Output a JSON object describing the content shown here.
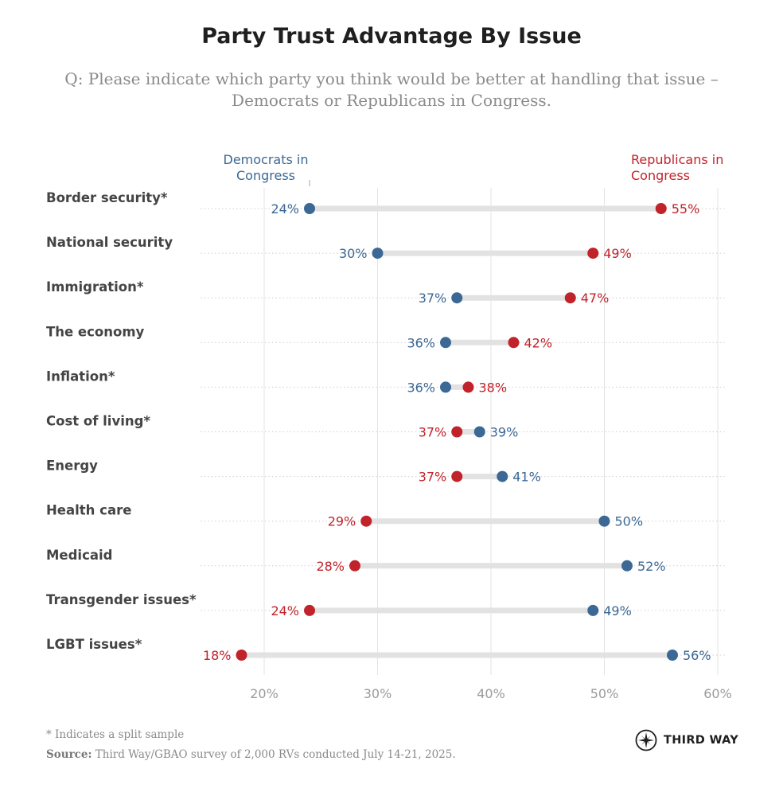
{
  "title": "Party Trust Advantage By Issue",
  "subtitle_line1": "Q: Please indicate which party you think would be better at handling that issue –",
  "subtitle_line2": "Democrats or Republicans in Congress.",
  "colors": {
    "dem": "#3b6894",
    "rep": "#c1232b",
    "bar": "#e2e2e2",
    "grid": "#e3e3e3",
    "label": "#444444",
    "tick": "#9a9a9a"
  },
  "chart_data": {
    "type": "dumbbell",
    "title": "Party Trust Advantage By Issue",
    "xlim": [
      15,
      60
    ],
    "xticks": [
      20,
      30,
      40,
      50,
      60
    ],
    "xtick_labels": [
      "20%",
      "30%",
      "40%",
      "50%",
      "60%"
    ],
    "series": [
      {
        "name": "Democrats in Congress",
        "label_lines": [
          "Democrats in",
          "Congress"
        ],
        "color": "#3b6894"
      },
      {
        "name": "Republicans in Congress",
        "label_lines": [
          "Republicans in",
          "Congress"
        ],
        "color": "#c1232b"
      }
    ],
    "categories": [
      "Border security*",
      "National security",
      "Immigration*",
      "The economy",
      "Inflation*",
      "Cost of living*",
      "Energy",
      "Health care",
      "Medicaid",
      "Transgender issues*",
      "LGBT issues*"
    ],
    "dem_values": [
      24,
      30,
      37,
      36,
      36,
      39,
      41,
      50,
      52,
      49,
      56
    ],
    "rep_values": [
      55,
      49,
      47,
      42,
      38,
      37,
      37,
      29,
      28,
      24,
      18
    ],
    "dem_labels": [
      "24%",
      "30%",
      "37%",
      "36%",
      "36%",
      "39%",
      "41%",
      "50%",
      "52%",
      "49%",
      "56%"
    ],
    "rep_labels": [
      "55%",
      "49%",
      "47%",
      "42%",
      "38%",
      "37%",
      "37%",
      "29%",
      "28%",
      "24%",
      "18%"
    ]
  },
  "footnote": "* Indicates a split sample",
  "source_label": "Source:",
  "source_text": " Third Way/GBAO survey of 2,000 RVs conducted July 14-21, 2025.",
  "brand": "THIRD WAY"
}
